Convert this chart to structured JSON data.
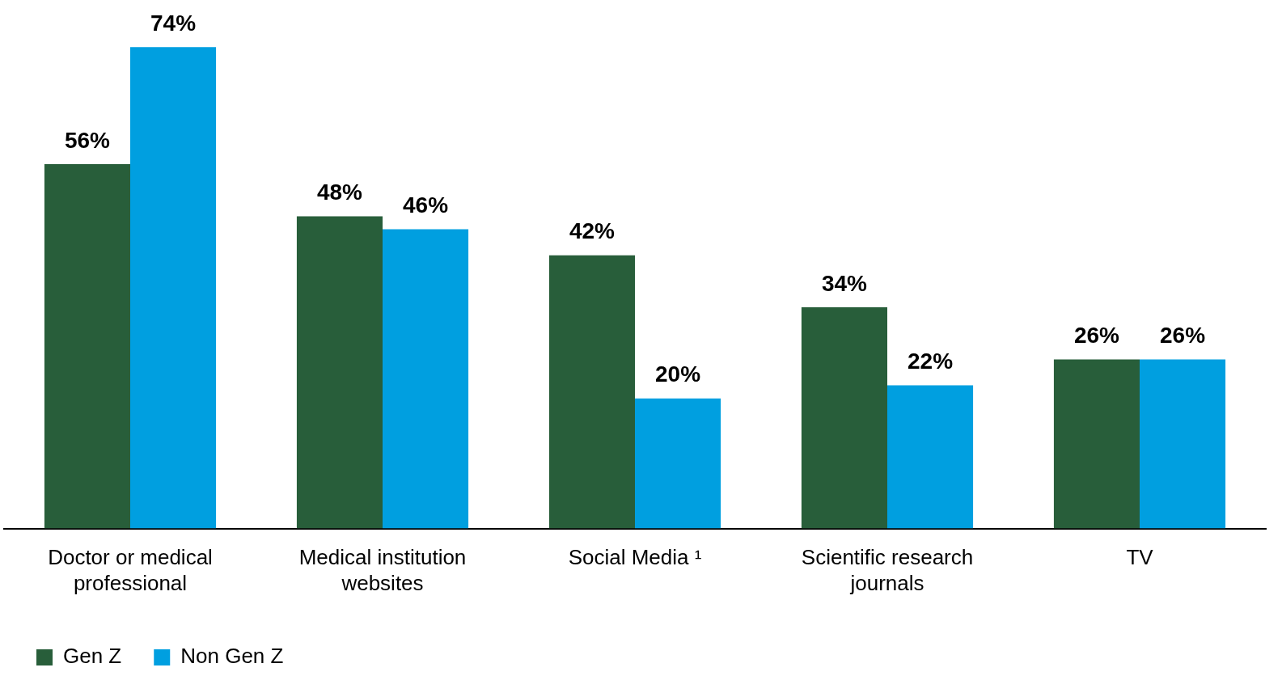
{
  "chart_data": {
    "type": "bar",
    "categories": [
      "Doctor or medical professional",
      "Medical institution websites",
      "Social Media ¹",
      "Scientific research journals",
      "TV"
    ],
    "series": [
      {
        "name": "Gen Z",
        "color": "#285e3a",
        "values": [
          56,
          48,
          42,
          34,
          26
        ],
        "value_labels": [
          "56%",
          "48%",
          "42%",
          "34%",
          "26%"
        ]
      },
      {
        "name": "Non Gen Z",
        "color": "#009fe0",
        "values": [
          74,
          46,
          20,
          22,
          26
        ],
        "value_labels": [
          "74%",
          "46%",
          "20%",
          "22%",
          "26%"
        ]
      }
    ],
    "grid": false,
    "legend": "bottom left",
    "tick_labels": "x"
  }
}
